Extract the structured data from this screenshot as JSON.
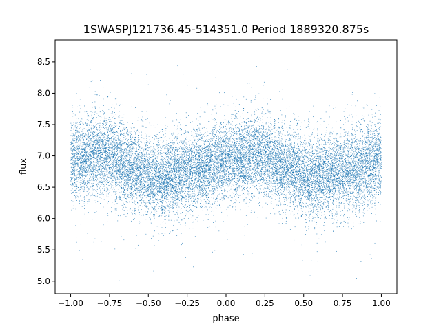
{
  "chart_data": {
    "type": "scatter",
    "title": "1SWASPJ121736.45-514351.0 Period 1889320.875s",
    "xlabel": "phase",
    "ylabel": "flux",
    "xlim": [
      -1.1,
      1.1
    ],
    "ylim": [
      4.8,
      8.85
    ],
    "x_ticks": [
      -1.0,
      -0.75,
      -0.5,
      -0.25,
      0.0,
      0.25,
      0.5,
      0.75,
      1.0
    ],
    "x_tick_labels": [
      "−1.00",
      "−0.75",
      "−0.50",
      "−0.25",
      "0.00",
      "0.25",
      "0.50",
      "0.75",
      "1.00"
    ],
    "y_ticks": [
      5.0,
      5.5,
      6.0,
      6.5,
      7.0,
      7.5,
      8.0,
      8.5
    ],
    "y_tick_labels": [
      "5.0",
      "5.5",
      "6.0",
      "6.5",
      "7.0",
      "7.5",
      "8.0",
      "8.5"
    ],
    "grid": false,
    "marker_color": "#1f77b4",
    "series": [
      {
        "phase_range": [
          -1.0,
          1.0
        ],
        "approx_point_count": 20000,
        "mean_flux_by_phase": [
          {
            "phase": -1.0,
            "flux": 6.95
          },
          {
            "phase": -0.9,
            "flux": 6.95
          },
          {
            "phase": -0.8,
            "flux": 7.05
          },
          {
            "phase": -0.75,
            "flux": 7.0
          },
          {
            "phase": -0.65,
            "flux": 6.85
          },
          {
            "phase": -0.55,
            "flux": 6.75
          },
          {
            "phase": -0.45,
            "flux": 6.6
          },
          {
            "phase": -0.35,
            "flux": 6.7
          },
          {
            "phase": -0.25,
            "flux": 6.75
          },
          {
            "phase": -0.15,
            "flux": 6.8
          },
          {
            "phase": -0.05,
            "flux": 6.9
          },
          {
            "phase": 0.0,
            "flux": 6.95
          },
          {
            "phase": 0.1,
            "flux": 6.95
          },
          {
            "phase": 0.2,
            "flux": 7.05
          },
          {
            "phase": 0.25,
            "flux": 7.0
          },
          {
            "phase": 0.35,
            "flux": 6.85
          },
          {
            "phase": 0.45,
            "flux": 6.75
          },
          {
            "phase": 0.55,
            "flux": 6.6
          },
          {
            "phase": 0.65,
            "flux": 6.7
          },
          {
            "phase": 0.75,
            "flux": 6.75
          },
          {
            "phase": 0.85,
            "flux": 6.8
          },
          {
            "phase": 0.95,
            "flux": 6.9
          },
          {
            "phase": 1.0,
            "flux": 6.95
          }
        ],
        "typical_spread_flux": 0.3,
        "outlier_range": [
          5.0,
          8.7
        ]
      }
    ]
  }
}
